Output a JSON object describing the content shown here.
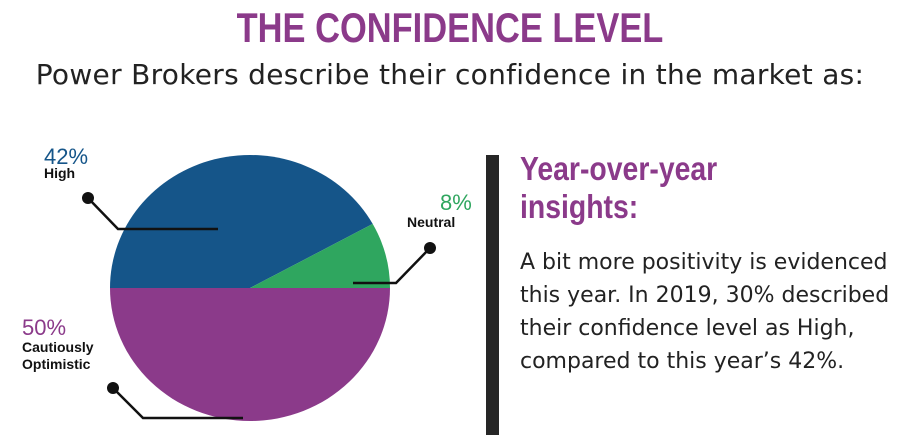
{
  "header": {
    "title": "THE CONFIDENCE LEVEL",
    "subtitle": "Power Brokers describe their confidence in the market as:"
  },
  "chart_data": {
    "type": "pie",
    "slices": [
      {
        "label": "High",
        "value": 42,
        "value_label": "42%",
        "color": "#155589"
      },
      {
        "label": "Neutral",
        "value": 8,
        "value_label": "8%",
        "color": "#2fa65f"
      },
      {
        "label": "Cautiously Optimistic",
        "value": 50,
        "value_label": "50%",
        "color": "#8b3a8a"
      }
    ]
  },
  "insights": {
    "title": "Year-over-year insights:",
    "body": "A bit more positivity is evidenced this year. In 2019, 30% described their confidence level as High, compared to this year’s 42%."
  }
}
